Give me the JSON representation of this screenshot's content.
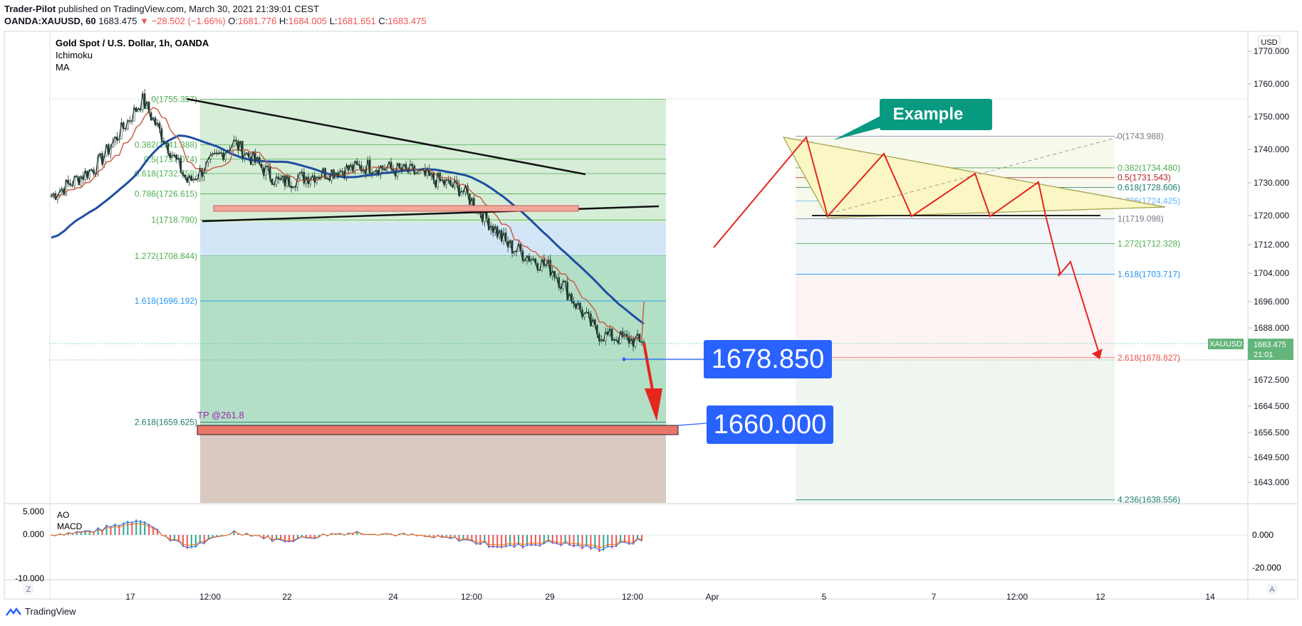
{
  "header": {
    "author": "Trader-Pilot",
    "published": "published on TradingView.com, March 30, 2021 21:39:01 CEST",
    "symbol": "OANDA:XAUUSD, 60",
    "last": "1683.475",
    "change": "−28.502 (−1.66%)",
    "o_label": "O:",
    "o": "1681.776",
    "h_label": "H:",
    "h": "1684.005",
    "l_label": "L:",
    "l": "1681.651",
    "c_label": "C:",
    "c": "1683.475"
  },
  "legend": {
    "title": "Gold Spot / U.S. Dollar, 1h, OANDA",
    "ind1": "Ichimoku",
    "ind2": "MA"
  },
  "currency": "USD",
  "price_tag": {
    "symbol": "XAUUSD",
    "value": "1683.475",
    "countdown": "21:01"
  },
  "axis_buttons": {
    "left": "Z",
    "right": "A"
  },
  "callouts": {
    "example": "Example",
    "entry": "1678.850",
    "target": "1660.000",
    "tp": "TP @261.8"
  },
  "fib_left": [
    {
      "label": "0(1755.357)",
      "price": 1755.357
    },
    {
      "label": "0.382(1741.388)",
      "price": 1741.388
    },
    {
      "label": "0.5(1737.074)",
      "price": 1737.074
    },
    {
      "label": "0.618(1732.759)",
      "price": 1732.759
    },
    {
      "label": "0.786(1726.615)",
      "price": 1726.615
    },
    {
      "label": "1(1718.790)",
      "price": 1718.79
    },
    {
      "label": "1.272(1708.844)",
      "price": 1708.844
    },
    {
      "label": "1.618(1696.192)",
      "price": 1696.192
    },
    {
      "label": "2.618(1659.625)",
      "price": 1659.625
    }
  ],
  "fib_right": [
    {
      "label": "0(1743.988)",
      "price": 1743.988
    },
    {
      "label": "0.382(1734.480)",
      "price": 1734.48
    },
    {
      "label": "0.5(1731.543)",
      "price": 1731.543
    },
    {
      "label": "0.618(1728.606)",
      "price": 1728.606
    },
    {
      "label": "0.786(1724.425)",
      "price": 1724.425
    },
    {
      "label": "1(1719.098)",
      "price": 1719.098
    },
    {
      "label": "1.272(1712.328)",
      "price": 1712.328
    },
    {
      "label": "1.618(1703.717)",
      "price": 1703.717
    },
    {
      "label": "2.618(1678.827)",
      "price": 1678.827
    },
    {
      "label": "4.236(1638.556)",
      "price": 1638.556
    }
  ],
  "oscillator": {
    "ao_label": "AO",
    "macd_label": "MACD",
    "left_ticks": [
      "5.000",
      "0.000",
      "-10.000"
    ],
    "right_ticks": [
      "0.000",
      "-20.000"
    ]
  },
  "footer": {
    "brand": "TradingView"
  },
  "colors": {
    "up": "#26a69a",
    "down": "#ef5350",
    "candle": "#1f3a2e",
    "ma": "#1e4fa0",
    "ichimoku": "#c8604a",
    "accent": "#2962ff",
    "example": "#089981"
  },
  "chart_data": {
    "type": "line",
    "title": "Gold Spot / U.S. Dollar, 1h, OANDA",
    "y_axis_ticks": [
      1770,
      1760,
      1750,
      1740,
      1730,
      1720,
      1712,
      1704,
      1696,
      1688,
      1680,
      1672.5,
      1664.5,
      1656.5,
      1649.5,
      1643
    ],
    "y_axis_tick_labels": [
      "1770.000",
      "1760.000",
      "1750.000",
      "1740.000",
      "1730.000",
      "1720.000",
      "1712.000",
      "1704.000",
      "1696.000",
      "1688.000",
      "1680.000",
      "1672.500",
      "1664.500",
      "1656.500",
      "1649.500",
      "1643.000"
    ],
    "x_axis_ticks": [
      "17",
      "12:00",
      "22",
      "24",
      "12:00",
      "29",
      "12:00",
      "Apr",
      "5",
      "7",
      "12:00",
      "12",
      "14"
    ],
    "ylim": [
      1638.5,
      1772
    ],
    "series": [
      {
        "name": "XAUUSD",
        "x": [
          "Mar 16",
          "Mar 17",
          "Mar 18",
          "Mar 19",
          "Mar 22",
          "Mar 23",
          "Mar 24",
          "Mar 25",
          "Mar 26",
          "Mar 29",
          "Mar 30 00:00",
          "Mar 30 06:00",
          "Mar 30 12:00",
          "Mar 30 18:00"
        ],
        "values": [
          1726,
          1735,
          1755,
          1730,
          1742,
          1730,
          1733,
          1735,
          1733,
          1728,
          1712,
          1705,
          1686,
          1683.475
        ]
      }
    ],
    "last_price": 1683.475
  }
}
